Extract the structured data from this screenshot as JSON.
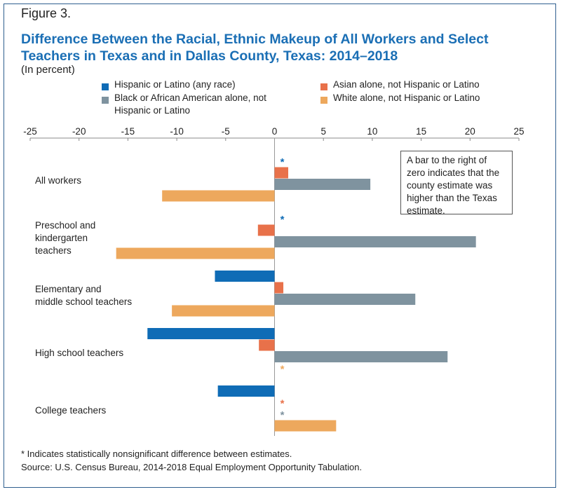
{
  "figure_label": "Figure 3.",
  "title": "Difference Between the Racial, Ethnic Makeup of All Workers and Select Teachers in Texas and in Dallas County, Texas: 2014–2018",
  "subtitle": "(In percent)",
  "legend": [
    {
      "label": "Hispanic or Latino (any race)",
      "color": "#0f6cb6"
    },
    {
      "label": "Asian alone, not Hispanic or Latino",
      "color": "#e8714a"
    },
    {
      "label": "Black or African American alone, not Hispanic or Latino",
      "color": "#7f939f"
    },
    {
      "label": "White alone, not Hispanic or Latino",
      "color": "#eda85d"
    }
  ],
  "annotation": "A bar to the right of zero indicates that the county estimate was higher than the Texas estimate.",
  "footnote": "* Indicates statistically nonsignificant difference between estimates.",
  "source": "Source: U.S. Census Bureau, 2014-2018 Equal Employment Opportunity Tabulation.",
  "chart_data": {
    "type": "bar",
    "orientation": "horizontal",
    "categories": [
      "All workers",
      "Preschool and kindergarten teachers",
      "Elementary and middle school teachers",
      "High school teachers",
      "College teachers"
    ],
    "category_lines": [
      [
        "All workers"
      ],
      [
        "Preschool and",
        "kindergarten",
        "teachers"
      ],
      [
        "Elementary and",
        "middle school teachers"
      ],
      [
        "High school teachers"
      ],
      [
        "College teachers"
      ]
    ],
    "xlim": [
      -25,
      25
    ],
    "xticks": [
      "-25",
      "-20",
      "-15",
      "-10",
      "-5",
      "0",
      "5",
      "10",
      "15",
      "20",
      "25"
    ],
    "nonsignificant_marker": "*",
    "series": [
      {
        "name": "Hispanic or Latino (any race)",
        "color": "#0f6cb6",
        "values": [
          0,
          0,
          -6.1,
          -13.0,
          -5.8
        ],
        "nonsignificant": [
          true,
          true,
          false,
          false,
          false
        ]
      },
      {
        "name": "Asian alone, not Hispanic or Latino",
        "color": "#e8714a",
        "values": [
          1.4,
          -1.7,
          0.9,
          -1.6,
          0
        ],
        "nonsignificant": [
          false,
          false,
          false,
          false,
          true
        ]
      },
      {
        "name": "Black or African American alone, not Hispanic or Latino",
        "color": "#7f939f",
        "values": [
          9.8,
          20.6,
          14.4,
          17.7,
          0
        ],
        "nonsignificant": [
          false,
          false,
          false,
          false,
          true
        ]
      },
      {
        "name": "White alone, not Hispanic or Latino",
        "color": "#eda85d",
        "values": [
          -11.5,
          -16.2,
          -10.5,
          0,
          6.3
        ],
        "nonsignificant": [
          false,
          false,
          false,
          true,
          false
        ]
      }
    ]
  }
}
